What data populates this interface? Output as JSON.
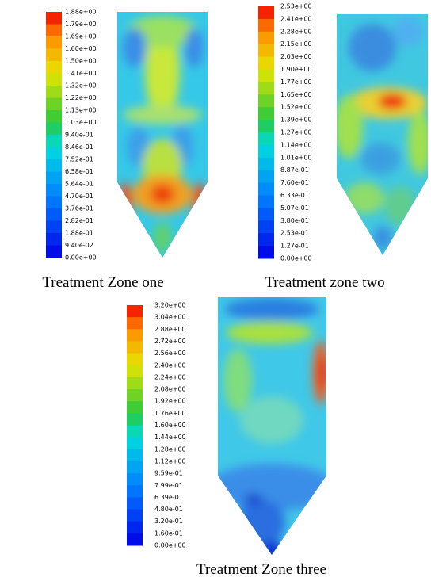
{
  "panels": [
    {
      "colorbar": {
        "labels": [
          "1.88e+00",
          "1.79e+00",
          "1.69e+00",
          "1.60e+00",
          "1.50e+00",
          "1.41e+00",
          "1.32e+00",
          "1.22e+00",
          "1.13e+00",
          "1.03e+00",
          "9.40e-01",
          "8.46e-01",
          "7.52e-01",
          "6.58e-01",
          "5.64e-01",
          "4.70e-01",
          "3.76e-01",
          "2.82e-01",
          "1.88e-01",
          "9.40e-02",
          "0.00e+00"
        ]
      },
      "caption": "Treatment Zone one"
    },
    {
      "colorbar": {
        "labels": [
          "2.53e+00",
          "2.41e+00",
          "2.28e+00",
          "2.15e+00",
          "2.03e+00",
          "1.90e+00",
          "1.77e+00",
          "1.65e+00",
          "1.52e+00",
          "1.39e+00",
          "1.27e+00",
          "1.14e+00",
          "1.01e+00",
          "8.87e-01",
          "7.60e-01",
          "6.33e-01",
          "5.07e-01",
          "3.80e-01",
          "2.53e-01",
          "1.27e-01",
          "0.00e+00"
        ]
      },
      "caption": "Treatment zone two"
    },
    {
      "colorbar": {
        "labels": [
          "3.20e+00",
          "3.04e+00",
          "2.88e+00",
          "2.72e+00",
          "2.56e+00",
          "2.40e+00",
          "2.24e+00",
          "2.08e+00",
          "1.92e+00",
          "1.76e+00",
          "1.60e+00",
          "1.44e+00",
          "1.28e+00",
          "1.12e+00",
          "9.59e-01",
          "7.99e-01",
          "6.39e-01",
          "4.80e-01",
          "3.20e-01",
          "1.60e-01",
          "0.00e+00"
        ]
      },
      "caption": "Treatment Zone three"
    }
  ]
}
